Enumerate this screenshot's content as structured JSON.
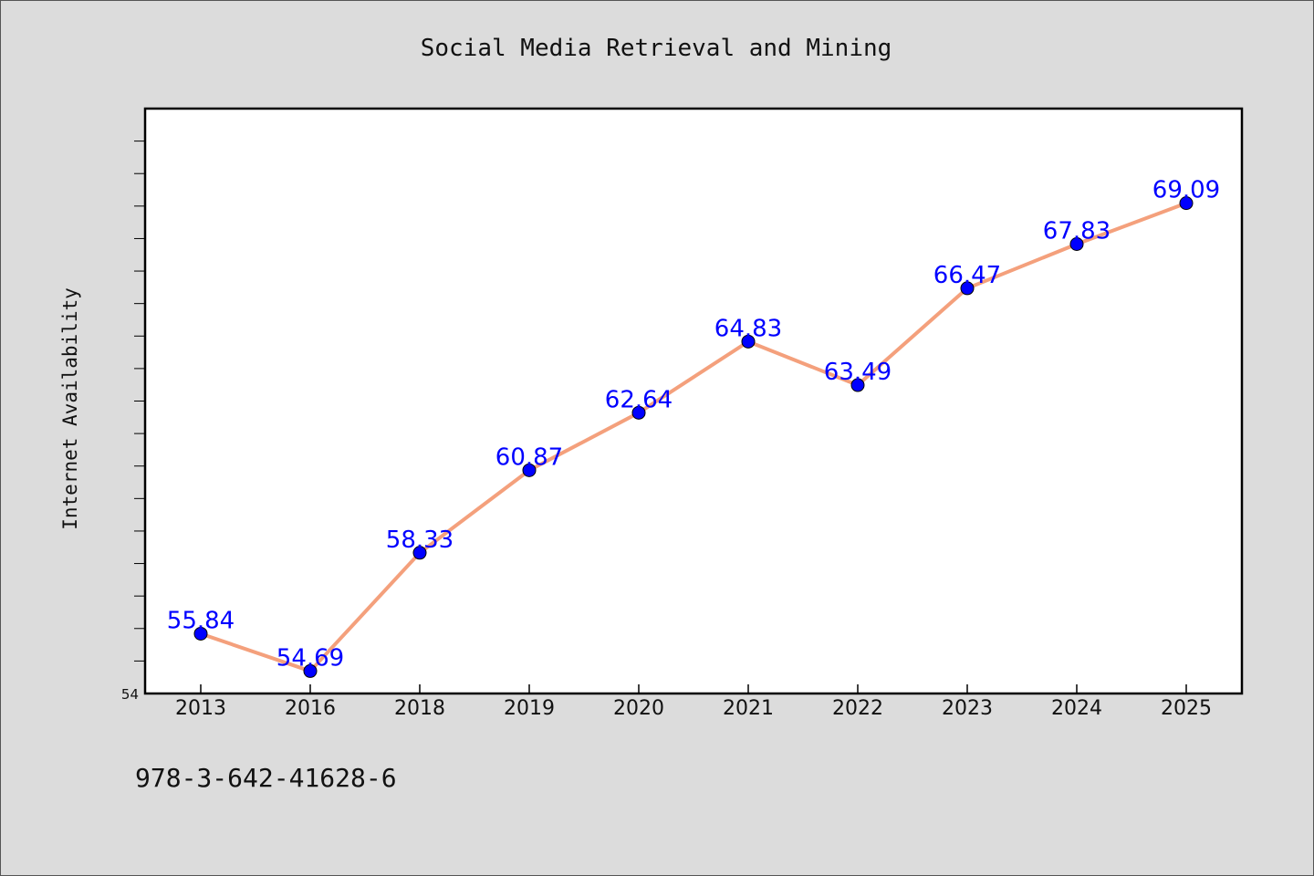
{
  "chart_data": {
    "type": "line",
    "title": "Social Media Retrieval and Mining",
    "xlabel": "",
    "ylabel": "Internet Availability",
    "categories": [
      "2013",
      "2016",
      "2018",
      "2019",
      "2020",
      "2021",
      "2022",
      "2023",
      "2024",
      "2025"
    ],
    "series": [
      {
        "values": [
          55.84,
          54.69,
          58.33,
          60.87,
          62.64,
          64.83,
          63.49,
          66.47,
          67.83,
          69.09
        ],
        "color": "#f4a07c",
        "marker_color": "#0000ff"
      }
    ],
    "data_labels": [
      "55.84",
      "54.69",
      "58.33",
      "60.87",
      "62.64",
      "64.83",
      "63.49",
      "66.47",
      "67.83",
      "69.09"
    ],
    "y_tick_labels": [
      "54"
    ],
    "ylim": [
      54,
      72
    ],
    "grid": false,
    "legend": "none"
  },
  "footnote": "978-3-642-41628-6"
}
